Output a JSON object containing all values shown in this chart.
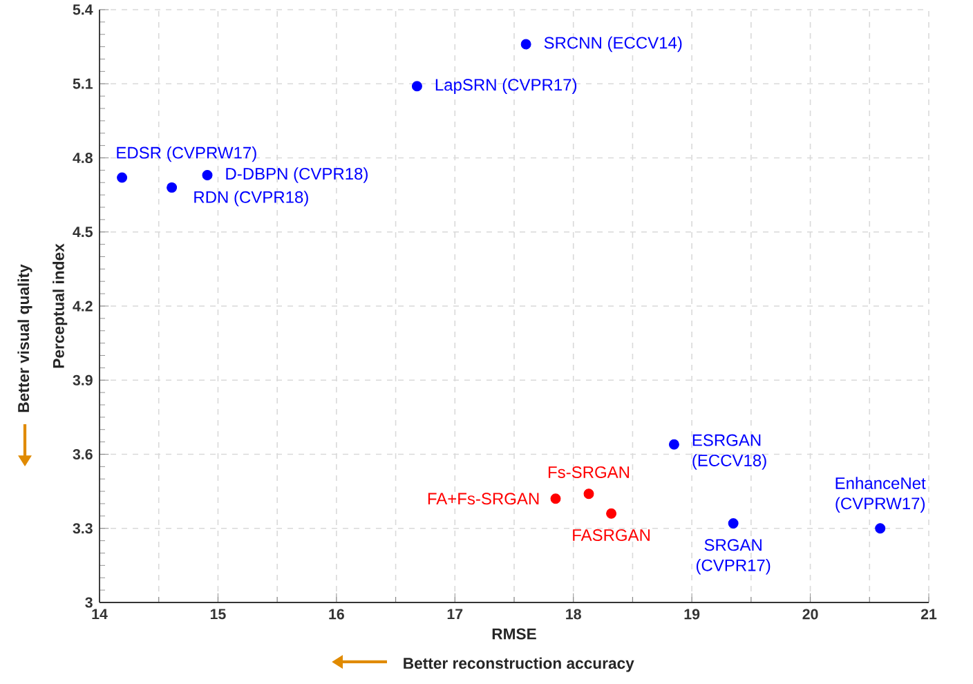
{
  "chart_data": {
    "type": "scatter",
    "xlabel": "RMSE",
    "ylabel": "Perceptual index",
    "xlim": [
      14,
      21
    ],
    "ylim": [
      3,
      5.4
    ],
    "xticks": [
      14,
      15,
      16,
      17,
      18,
      19,
      20,
      21
    ],
    "yticks": [
      3,
      3.3,
      3.6,
      3.9,
      4.2,
      4.5,
      4.8,
      5.1,
      5.4
    ],
    "grid": true,
    "marker": "circle",
    "series": [
      {
        "color": "#0000ff",
        "x": [
          17.6,
          16.68,
          14.19,
          14.91,
          14.61,
          18.85,
          19.35,
          20.59
        ],
        "values": [
          5.26,
          5.09,
          4.72,
          4.73,
          4.68,
          3.64,
          3.32,
          3.3
        ]
      },
      {
        "color": "#ff0000",
        "x": [
          18.13,
          17.85,
          18.32
        ],
        "values": [
          3.44,
          3.42,
          3.36
        ]
      }
    ],
    "annotations": [
      {
        "text": "SRCNN (ECCV14)",
        "x": 17.6,
        "y": 5.26
      },
      {
        "text": "LapSRN (CVPR17)",
        "x": 16.68,
        "y": 5.09
      },
      {
        "text": "EDSR (CVPRW17)",
        "x": 14.19,
        "y": 4.72
      },
      {
        "text": "D-DBPN (CVPR18)",
        "x": 14.91,
        "y": 4.73
      },
      {
        "text": "RDN (CVPR18)",
        "x": 14.61,
        "y": 4.68
      },
      {
        "text": "ESRGAN (ECCV18)",
        "x": 18.85,
        "y": 3.64
      },
      {
        "text": "SRGAN (CVPR17)",
        "x": 19.35,
        "y": 3.32
      },
      {
        "text": "EnhanceNet (CVPRW17)",
        "x": 20.59,
        "y": 3.3
      },
      {
        "text": "Fs-SRGAN",
        "x": 18.13,
        "y": 3.44
      },
      {
        "text": "FA+Fs-SRGAN",
        "x": 17.85,
        "y": 3.42
      },
      {
        "text": "FASRGAN",
        "x": 18.32,
        "y": 3.36
      },
      "Better visual quality",
      "Better reconstruction accuracy"
    ]
  }
}
